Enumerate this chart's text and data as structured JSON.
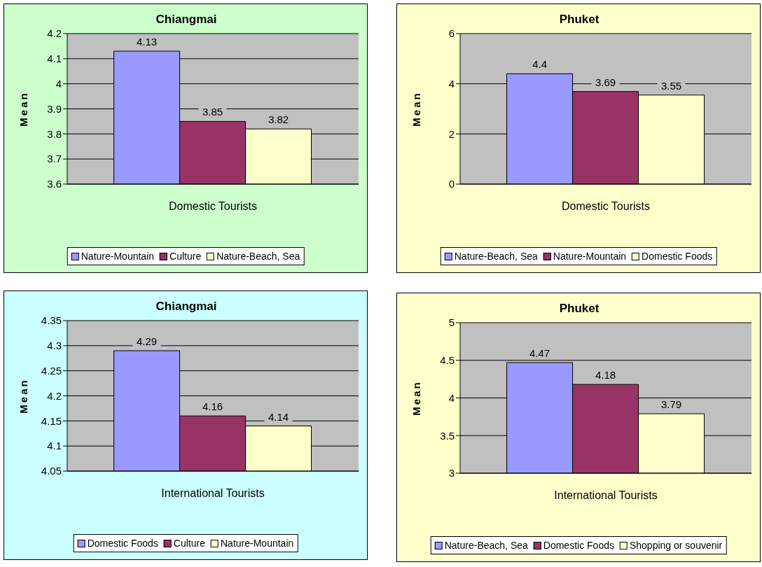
{
  "chart_data": [
    {
      "type": "bar",
      "title": "Chiangmai",
      "ylabel": "Mean",
      "categories": [
        "Domestic Tourists"
      ],
      "series": [
        {
          "name": "Nature-Mountain",
          "color": "#9999ff",
          "values": [
            4.13
          ]
        },
        {
          "name": "Culture",
          "color": "#993366",
          "values": [
            3.85
          ]
        },
        {
          "name": "Nature-Beach, Sea",
          "color": "#ffffcc",
          "values": [
            3.82
          ]
        }
      ],
      "ylim": [
        3.6,
        4.2
      ],
      "yticks": [
        3.6,
        3.7,
        3.8,
        3.9,
        4,
        4.1,
        4.2
      ],
      "grid": "y",
      "legend": "bottom",
      "data_labels": true
    },
    {
      "type": "bar",
      "title": "Phuket",
      "ylabel": "Mean",
      "categories": [
        "Domestic Tourists"
      ],
      "series": [
        {
          "name": "Nature-Beach, Sea",
          "color": "#9999ff",
          "values": [
            4.4
          ]
        },
        {
          "name": "Nature-Mountain",
          "color": "#993366",
          "values": [
            3.69
          ]
        },
        {
          "name": "Domestic Foods",
          "color": "#ffffcc",
          "values": [
            3.55
          ]
        }
      ],
      "ylim": [
        0,
        6
      ],
      "yticks": [
        0,
        2,
        4,
        6
      ],
      "grid": "y",
      "legend": "bottom",
      "data_labels": true
    },
    {
      "type": "bar",
      "title": "Chiangmai",
      "ylabel": "Mean",
      "categories": [
        "International Tourists"
      ],
      "series": [
        {
          "name": "Domestic Foods",
          "color": "#9999ff",
          "values": [
            4.29
          ]
        },
        {
          "name": "Culture",
          "color": "#993366",
          "values": [
            4.16
          ]
        },
        {
          "name": "Nature-Mountain",
          "color": "#ffffcc",
          "values": [
            4.14
          ]
        }
      ],
      "ylim": [
        4.05,
        4.35
      ],
      "yticks": [
        4.05,
        4.1,
        4.15,
        4.2,
        4.25,
        4.3,
        4.35
      ],
      "grid": "y",
      "legend": "bottom",
      "data_labels": true
    },
    {
      "type": "bar",
      "title": "Phuket",
      "ylabel": "Mean",
      "categories": [
        "International Tourists"
      ],
      "series": [
        {
          "name": "Nature-Beach, Sea",
          "color": "#9999ff",
          "values": [
            4.47
          ]
        },
        {
          "name": "Domestic Foods",
          "color": "#993366",
          "values": [
            4.18
          ]
        },
        {
          "name": "Shopping or souvenir",
          "color": "#ffffcc",
          "values": [
            3.79
          ]
        }
      ],
      "ylim": [
        3,
        5
      ],
      "yticks": [
        3,
        3.5,
        4,
        4.5,
        5
      ],
      "grid": "y",
      "legend": "bottom",
      "data_labels": true
    }
  ]
}
